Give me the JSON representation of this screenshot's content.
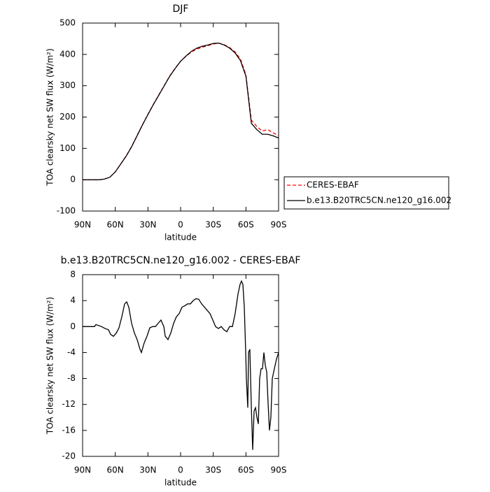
{
  "chart_data": [
    {
      "type": "line",
      "title": "DJF",
      "xlabel": "latitude",
      "ylabel": "TOA clearsky net SW flux (W/m²)",
      "x": [
        90,
        85,
        80,
        75,
        70,
        65,
        60,
        55,
        50,
        45,
        40,
        35,
        30,
        25,
        20,
        15,
        10,
        5,
        0,
        -5,
        -10,
        -15,
        -20,
        -25,
        -30,
        -35,
        -40,
        -45,
        -50,
        -55,
        -60,
        -65,
        -70,
        -75,
        -80,
        -85,
        -90
      ],
      "series": [
        {
          "name": "CERES-EBAF",
          "color": "#ff0000",
          "linestyle": "dashed",
          "values": [
            0,
            0,
            0,
            0,
            2,
            8,
            25,
            50,
            76,
            106,
            141,
            176,
            209,
            241,
            271,
            301,
            331,
            356,
            378,
            394,
            408,
            417,
            423,
            428,
            433,
            436,
            431,
            422,
            408,
            385,
            335,
            190,
            170,
            155,
            160,
            150,
            140
          ]
        },
        {
          "name": "b.e13.B20TRC5CN.ne120_g16.002",
          "color": "#000000",
          "linestyle": "solid",
          "values": [
            0,
            0,
            0,
            0,
            2,
            8,
            25,
            50,
            75,
            105,
            140,
            175,
            208,
            240,
            270,
            300,
            330,
            355,
            378,
            395,
            410,
            420,
            426,
            430,
            435,
            436,
            430,
            420,
            405,
            380,
            330,
            180,
            160,
            145,
            145,
            140,
            133
          ]
        }
      ],
      "xlim": [
        90,
        -90
      ],
      "xticks": [
        {
          "value": 90,
          "label": "90N"
        },
        {
          "value": 60,
          "label": "60N"
        },
        {
          "value": 30,
          "label": "30N"
        },
        0,
        {
          "value": -30,
          "label": "30S"
        },
        {
          "value": -60,
          "label": "60S"
        },
        {
          "value": -90,
          "label": "90S"
        }
      ],
      "ylim": [
        -100,
        500
      ],
      "yticks": [
        -100,
        0,
        100,
        200,
        300,
        400,
        500
      ],
      "legend": "right"
    },
    {
      "type": "line",
      "title": "b.e13.B20TRC5CN.ne120_g16.002 - CERES-EBAF",
      "xlabel": "latitude",
      "ylabel": "TOA clearsky net SW flux (W/m²)",
      "x": [
        90,
        79.1,
        77.8,
        72.6,
        69.4,
        66.2,
        64.3,
        61.7,
        59.1,
        56.6,
        54,
        51.4,
        49.5,
        47.6,
        45,
        42.4,
        39.9,
        37.3,
        36,
        33.4,
        30.9,
        28.3,
        25.7,
        23.1,
        20.6,
        18,
        15.4,
        14.1,
        11.6,
        9,
        6.4,
        3.9,
        1.3,
        -1.3,
        -3.9,
        -6.4,
        -9,
        -11.6,
        -14.1,
        -16.7,
        -19.3,
        -21.9,
        -24.4,
        -27,
        -29.6,
        -32.1,
        -34.7,
        -37.3,
        -39.9,
        -42.4,
        -45,
        -47.6,
        -50.1,
        -52.7,
        -54.6,
        -55.9,
        -57.2,
        -58.5,
        -59.8,
        -60.4,
        -61.7,
        -62.4,
        -63.6,
        -64.9,
        -66.2,
        -67.5,
        -68.8,
        -70.1,
        -71.4,
        -72.6,
        -73.9,
        -75.2,
        -76.5,
        -77.8,
        -79.1,
        -80.4,
        -81.6,
        -82.9,
        -84.2,
        -86.1,
        -88.1,
        -90
      ],
      "series": [
        {
          "color": "#000000",
          "linestyle": "solid",
          "values": [
            0,
            0,
            0.3,
            0,
            -0.3,
            -0.5,
            -1.2,
            -1.5,
            -1,
            -0.2,
            1.5,
            3.5,
            3.8,
            3,
            0.5,
            -1,
            -2,
            -3.5,
            -4,
            -2.5,
            -1.5,
            -0.2,
            0,
            0,
            0.5,
            1,
            0,
            -1.5,
            -2,
            -1,
            0.5,
            1.5,
            2,
            3,
            3.2,
            3.5,
            3.5,
            4,
            4.3,
            4.2,
            3.5,
            3,
            2.5,
            2,
            1,
            0,
            -0.3,
            0,
            -0.5,
            -0.8,
            0,
            0,
            2,
            5,
            6.5,
            7,
            6.5,
            3,
            -4,
            -8,
            -12.5,
            -4,
            -3.5,
            -12,
            -19,
            -13,
            -12.5,
            -14,
            -15,
            -8,
            -6.5,
            -6.5,
            -4,
            -6,
            -7,
            -12,
            -16,
            -14,
            -8,
            -6.5,
            -5,
            -4
          ]
        }
      ],
      "xlim": [
        90,
        -90
      ],
      "xticks": [
        {
          "value": 90,
          "label": "90N"
        },
        {
          "value": 60,
          "label": "60N"
        },
        {
          "value": 30,
          "label": "30N"
        },
        0,
        {
          "value": -30,
          "label": "30S"
        },
        {
          "value": -60,
          "label": "60S"
        },
        {
          "value": -90,
          "label": "90S"
        }
      ],
      "ylim": [
        -20,
        8
      ],
      "yticks": [
        -20,
        -16,
        -12,
        -8,
        -4,
        0,
        4,
        8
      ]
    }
  ]
}
